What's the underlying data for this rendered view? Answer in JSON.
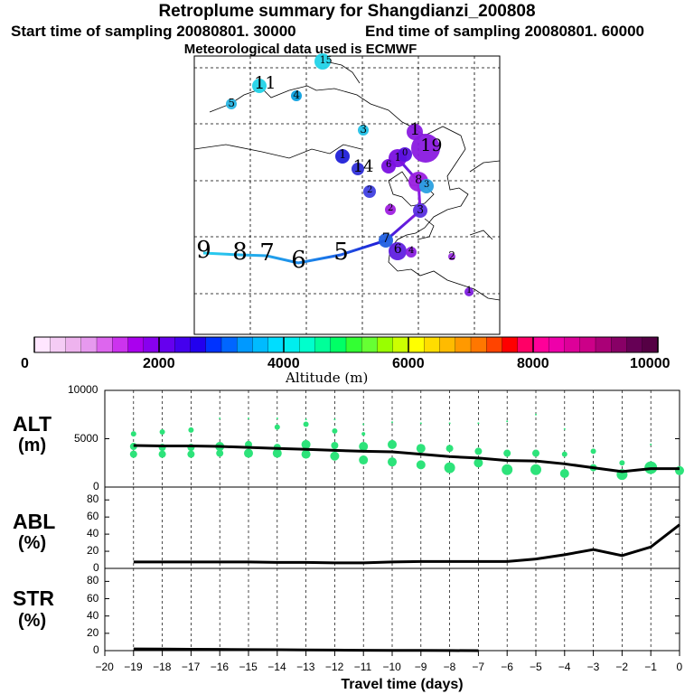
{
  "header": {
    "title": "Retroplume summary for Shangdianzi_200808",
    "start_label": "Start time of sampling 20080801. 30000",
    "end_label": "End time of sampling 20080801. 60000",
    "met_label": "Meteorological data used is ECMWF"
  },
  "map": {
    "labels": [
      {
        "text": "15",
        "color": "#22d3e8"
      },
      {
        "text": "11",
        "color": "#22d3e8"
      },
      {
        "text": "4",
        "color": "#0aa0e0"
      },
      {
        "text": "5",
        "color": "#2ab6e4"
      },
      {
        "text": "3",
        "color": "#22c0e6"
      },
      {
        "text": "1",
        "color": "#8a1ae0"
      },
      {
        "text": "19",
        "color": "#8a1ae0"
      },
      {
        "text": "1",
        "color": "#2020d8"
      },
      {
        "text": "14",
        "color": "#3030d8"
      },
      {
        "text": "6",
        "color": "#7a10e0"
      },
      {
        "text": "1",
        "color": "#7a10e0"
      },
      {
        "text": "0",
        "color": "#5a10e0"
      },
      {
        "text": "8",
        "color": "#9a20e0"
      },
      {
        "text": "3",
        "color": "#2aa0e0"
      },
      {
        "text": "2",
        "color": "#4040e0"
      },
      {
        "text": "2",
        "color": "#a020e0"
      },
      {
        "text": "3",
        "color": "#5a30e0"
      },
      {
        "text": "7",
        "color": "#2060e0"
      },
      {
        "text": "6",
        "color": "#6020e0"
      },
      {
        "text": "4",
        "color": "#8a20e0"
      },
      {
        "text": "2",
        "color": "#9a30e0"
      },
      {
        "text": "1",
        "color": "#8020e0"
      },
      {
        "text": "9",
        "color": "#2ad0ee"
      },
      {
        "text": "8",
        "color": "#2ad0ee"
      },
      {
        "text": "7",
        "color": "#2ad0ee"
      },
      {
        "text": "6",
        "color": "#2ad0ee"
      },
      {
        "text": "5",
        "color": "#2ad0ee"
      }
    ]
  },
  "colorbar": {
    "tick_labels": [
      "0",
      "2000",
      "4000",
      "6000",
      "8000",
      "10000"
    ],
    "label": "Altitude (m)",
    "colors": [
      "#ffe6ff",
      "#f5ccf5",
      "#eeb3ee",
      "#e699ee",
      "#dd66ee",
      "#cc33ee",
      "#aa00ee",
      "#8800ee",
      "#6600ee",
      "#4400ee",
      "#2200ee",
      "#0033ff",
      "#0066ff",
      "#0099ff",
      "#00bbff",
      "#00ddff",
      "#00eeee",
      "#00ffcc",
      "#00ff99",
      "#00ff66",
      "#33ff33",
      "#66ff33",
      "#99ff00",
      "#ccff00",
      "#ffff00",
      "#ffdd00",
      "#ffbb00",
      "#ff9900",
      "#ff7700",
      "#ff4400",
      "#ff0000",
      "#ff0066",
      "#ff0099",
      "#ee00aa",
      "#dd0099",
      "#cc0088",
      "#aa0077",
      "#880066",
      "#660055",
      "#550044"
    ]
  },
  "chart_data": [
    {
      "type": "scatter+line",
      "ylabel": "ALT\n(m)",
      "ylim": [
        0,
        10000
      ],
      "yticks": [
        "0",
        "5000",
        "10000"
      ],
      "xlim": [
        -20,
        0
      ],
      "line": {
        "x": [
          -19,
          -18,
          -17,
          -16,
          -15,
          -14,
          -13,
          -12,
          -11,
          -10,
          -9,
          -8,
          -7,
          -6,
          -5,
          -4,
          -3,
          -2,
          -1,
          0
        ],
        "y": [
          4300,
          4250,
          4250,
          4200,
          4100,
          4000,
          3900,
          3800,
          3700,
          3650,
          3400,
          3150,
          3000,
          2750,
          2700,
          2400,
          2000,
          1600,
          1900,
          1900
        ]
      },
      "points": [
        {
          "x": -19,
          "y": 5500,
          "r": 3
        },
        {
          "x": -19,
          "y": 4200,
          "r": 4
        },
        {
          "x": -19,
          "y": 3400,
          "r": 4
        },
        {
          "x": -18,
          "y": 5700,
          "r": 3
        },
        {
          "x": -18,
          "y": 4100,
          "r": 4
        },
        {
          "x": -18,
          "y": 3400,
          "r": 4
        },
        {
          "x": -17,
          "y": 5900,
          "r": 3
        },
        {
          "x": -17,
          "y": 4100,
          "r": 4
        },
        {
          "x": -17,
          "y": 3400,
          "r": 4
        },
        {
          "x": -16,
          "y": 7100,
          "r": 1
        },
        {
          "x": -16,
          "y": 4200,
          "r": 5
        },
        {
          "x": -16,
          "y": 3500,
          "r": 4
        },
        {
          "x": -15,
          "y": 7100,
          "r": 1
        },
        {
          "x": -15,
          "y": 4400,
          "r": 4
        },
        {
          "x": -15,
          "y": 3500,
          "r": 5
        },
        {
          "x": -14,
          "y": 7100,
          "r": 1
        },
        {
          "x": -14,
          "y": 6200,
          "r": 3
        },
        {
          "x": -14,
          "y": 4100,
          "r": 4
        },
        {
          "x": -14,
          "y": 3500,
          "r": 5
        },
        {
          "x": -13,
          "y": 7000,
          "r": 1
        },
        {
          "x": -13,
          "y": 6500,
          "r": 3
        },
        {
          "x": -13,
          "y": 4400,
          "r": 5
        },
        {
          "x": -13,
          "y": 3400,
          "r": 5
        },
        {
          "x": -12,
          "y": 7000,
          "r": 1
        },
        {
          "x": -12,
          "y": 5800,
          "r": 3
        },
        {
          "x": -12,
          "y": 4300,
          "r": 4
        },
        {
          "x": -12,
          "y": 3200,
          "r": 5
        },
        {
          "x": -11,
          "y": 6500,
          "r": 1
        },
        {
          "x": -11,
          "y": 5500,
          "r": 2
        },
        {
          "x": -11,
          "y": 4200,
          "r": 5
        },
        {
          "x": -11,
          "y": 2800,
          "r": 5
        },
        {
          "x": -10,
          "y": 6700,
          "r": 1
        },
        {
          "x": -10,
          "y": 4400,
          "r": 5
        },
        {
          "x": -10,
          "y": 2600,
          "r": 5
        },
        {
          "x": -9,
          "y": 6600,
          "r": 1
        },
        {
          "x": -9,
          "y": 4000,
          "r": 5
        },
        {
          "x": -9,
          "y": 2300,
          "r": 5
        },
        {
          "x": -8,
          "y": 6600,
          "r": 1
        },
        {
          "x": -8,
          "y": 4000,
          "r": 4
        },
        {
          "x": -8,
          "y": 2000,
          "r": 6
        },
        {
          "x": -7,
          "y": 6600,
          "r": 1
        },
        {
          "x": -7,
          "y": 3700,
          "r": 4
        },
        {
          "x": -7,
          "y": 2500,
          "r": 5
        },
        {
          "x": -6,
          "y": 6800,
          "r": 1
        },
        {
          "x": -6,
          "y": 3500,
          "r": 4
        },
        {
          "x": -6,
          "y": 1800,
          "r": 6
        },
        {
          "x": -5,
          "y": 7500,
          "r": 1
        },
        {
          "x": -5,
          "y": 3500,
          "r": 4
        },
        {
          "x": -5,
          "y": 1800,
          "r": 6
        },
        {
          "x": -4,
          "y": 6000,
          "r": 1
        },
        {
          "x": -4,
          "y": 3400,
          "r": 3
        },
        {
          "x": -4,
          "y": 1400,
          "r": 5
        },
        {
          "x": -3,
          "y": 3700,
          "r": 3
        },
        {
          "x": -3,
          "y": 2000,
          "r": 4
        },
        {
          "x": -2,
          "y": 2500,
          "r": 3
        },
        {
          "x": -2,
          "y": 1300,
          "r": 6
        },
        {
          "x": -1,
          "y": 4400,
          "r": 1
        },
        {
          "x": -1,
          "y": 2000,
          "r": 7
        },
        {
          "x": 0,
          "y": 1700,
          "r": 5
        }
      ]
    },
    {
      "type": "line",
      "ylabel": "ABL\n(%)",
      "ylim": [
        0,
        95
      ],
      "yticks": [
        "0",
        "20",
        "40",
        "60",
        "80"
      ],
      "x": [
        -19,
        -18,
        -17,
        -16,
        -15,
        -14,
        -13,
        -12,
        -11,
        -10,
        -9,
        -8,
        -7,
        -6,
        -5,
        -4,
        -3,
        -2,
        -1,
        0
      ],
      "y": [
        7.5,
        7.5,
        7.5,
        7.5,
        7.5,
        7,
        7,
        6.5,
        6.5,
        7.5,
        8,
        8,
        8,
        8,
        11,
        16,
        22,
        15,
        25,
        51
      ]
    },
    {
      "type": "line",
      "ylabel": "STR\n(%)",
      "ylim": [
        0,
        95
      ],
      "yticks": [
        "0",
        "20",
        "40",
        "60",
        "80"
      ],
      "x": [
        -19,
        -18,
        -17,
        -16,
        -15,
        -14,
        -13,
        -12,
        -11,
        -10,
        -9,
        -8,
        -7
      ],
      "y": [
        2,
        1.8,
        1.6,
        1.4,
        1.2,
        1,
        0.8,
        0.6,
        0.4,
        0.3,
        0.2,
        0.1,
        0
      ]
    }
  ],
  "xaxis": {
    "label": "Travel time (days)",
    "ticks": [
      -20,
      -19,
      -18,
      -17,
      -16,
      -15,
      -14,
      -13,
      -12,
      -11,
      -10,
      -9,
      -8,
      -7,
      -6,
      -5,
      -4,
      -3,
      -2,
      -1,
      0
    ],
    "tick_labels": [
      "−20",
      "−19",
      "−18",
      "−17",
      "−16",
      "−15",
      "−14",
      "−13",
      "−12",
      "−11",
      "−10",
      "−9",
      "−8",
      "−7",
      "−6",
      "−5",
      "−4",
      "−3",
      "−2",
      "−1",
      "0"
    ]
  },
  "panel_labels": {
    "alt_1": "ALT",
    "alt_2": "(m)",
    "abl_1": "ABL",
    "abl_2": "(%)",
    "str_1": "STR",
    "str_2": "(%)"
  }
}
